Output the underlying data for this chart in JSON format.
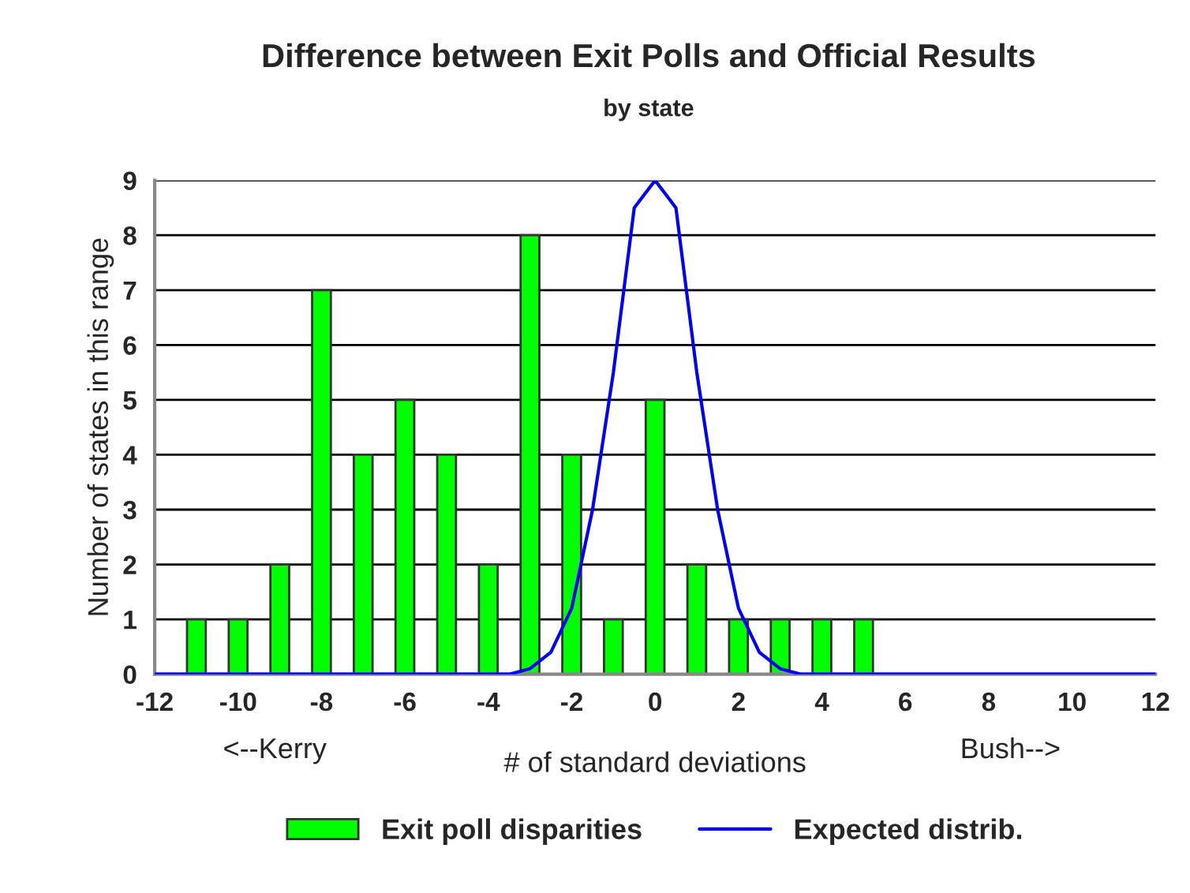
{
  "chart_data": {
    "type": "bar",
    "title": "Difference between Exit Polls and Official Results",
    "subtitle": "by state",
    "xlabel": "# of standard deviations",
    "ylabel": "Number of states in this range",
    "annotations": [
      "<--Kerry",
      "Bush-->"
    ],
    "x": [
      -11,
      -10,
      -9,
      -8,
      -7,
      -6,
      -5,
      -4,
      -3,
      -2,
      -1,
      0,
      1,
      2,
      3,
      4,
      5
    ],
    "series": [
      {
        "name": "Exit poll disparities",
        "color": "#00ff00",
        "values": [
          1,
          1,
          2,
          7,
          4,
          5,
          4,
          2,
          8,
          4,
          1,
          5,
          2,
          1,
          1,
          1,
          1
        ]
      },
      {
        "name": "Expected distrib.",
        "type": "line",
        "color": "#0000ff",
        "x": [
          -12,
          -3.5,
          -3,
          -2.5,
          -2,
          -1.5,
          -1,
          -0.5,
          0,
          0.5,
          1,
          1.5,
          2,
          2.5,
          3,
          3.5,
          12
        ],
        "values": [
          0,
          0,
          0.1,
          0.4,
          1.2,
          3,
          5.5,
          8.5,
          9,
          8.5,
          5.5,
          3,
          1.2,
          0.4,
          0.1,
          0,
          0
        ]
      }
    ],
    "xlim": [
      -12,
      12
    ],
    "xticks": [
      -12,
      -10,
      -8,
      -6,
      -4,
      -2,
      0,
      2,
      4,
      6,
      8,
      10,
      12
    ],
    "ylim": [
      0,
      9
    ],
    "yticks": [
      0,
      1,
      2,
      3,
      4,
      5,
      6,
      7,
      8,
      9
    ],
    "grid": "y",
    "legend": "bottom",
    "marker": "none",
    "line_style": "solid"
  }
}
